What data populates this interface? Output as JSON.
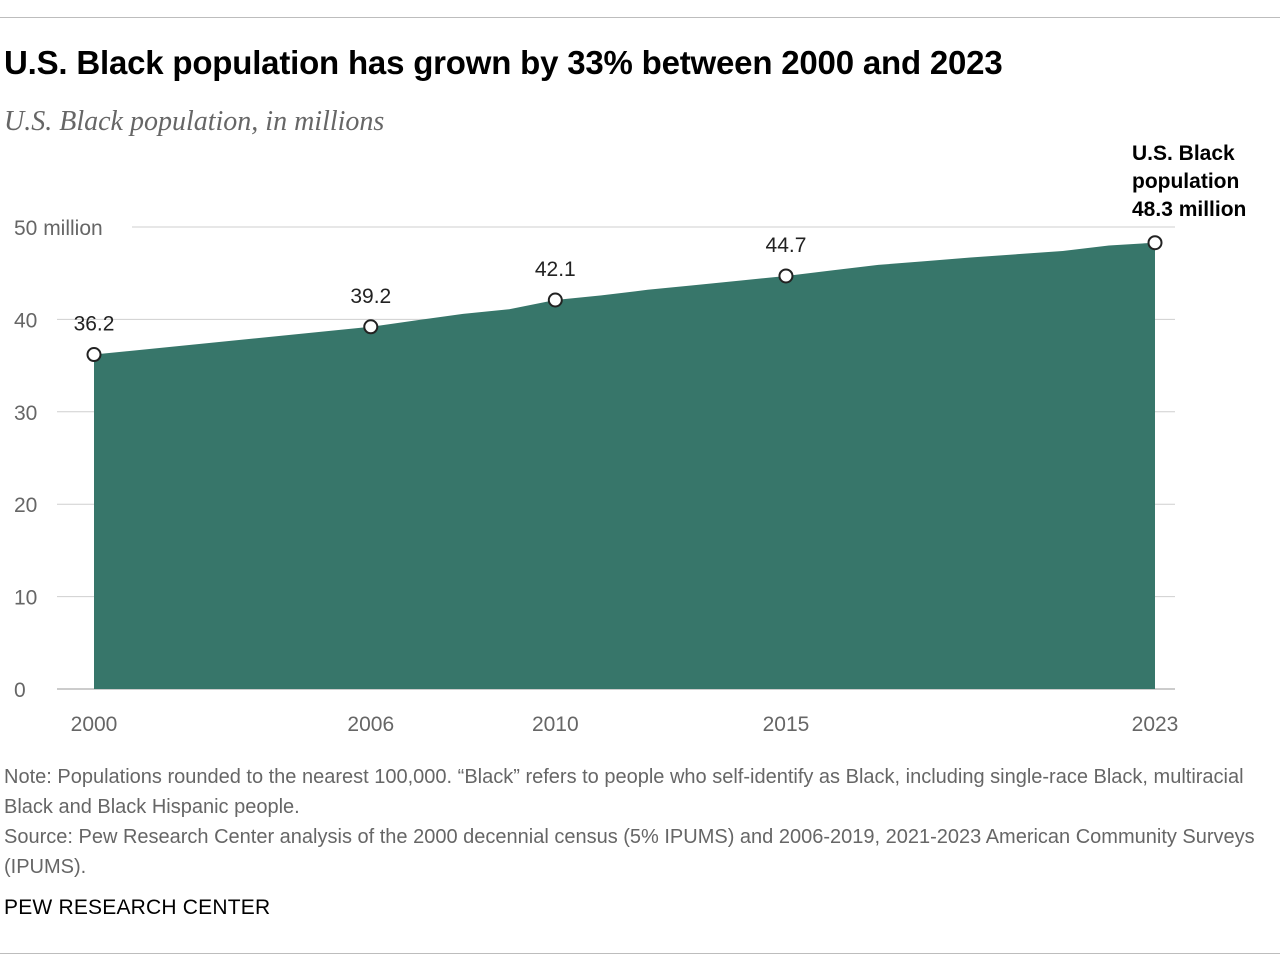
{
  "title": "U.S. Black population has grown by 33% between 2000 and 2023",
  "subtitle": "U.S. Black population, in millions",
  "colors": {
    "area": "#37766A",
    "grid": "#cfcfcf",
    "axis": "#666666"
  },
  "chart_data": {
    "type": "area",
    "x": [
      2000,
      2006,
      2007,
      2008,
      2009,
      2010,
      2011,
      2012,
      2013,
      2014,
      2015,
      2016,
      2017,
      2018,
      2019,
      2021,
      2022,
      2023
    ],
    "values": [
      36.2,
      39.2,
      39.9,
      40.6,
      41.1,
      42.1,
      42.6,
      43.2,
      43.7,
      44.2,
      44.7,
      45.3,
      45.9,
      46.3,
      46.7,
      47.4,
      48.0,
      48.3
    ],
    "xlim": [
      2000,
      2023
    ],
    "ylim": [
      0,
      50
    ],
    "y_ticks": [
      {
        "value": 50,
        "label": "50 million"
      },
      {
        "value": 40,
        "label": "40"
      },
      {
        "value": 30,
        "label": "30"
      },
      {
        "value": 20,
        "label": "20"
      },
      {
        "value": 10,
        "label": "10"
      },
      {
        "value": 0,
        "label": "0"
      }
    ],
    "x_ticks": [
      {
        "value": 2000,
        "label": "2000"
      },
      {
        "value": 2006,
        "label": "2006"
      },
      {
        "value": 2010,
        "label": "2010"
      },
      {
        "value": 2015,
        "label": "2015"
      },
      {
        "value": 2023,
        "label": "2023"
      }
    ],
    "markers": [
      {
        "x": 2000,
        "y": 36.2,
        "label": "36.2"
      },
      {
        "x": 2006,
        "y": 39.2,
        "label": "39.2"
      },
      {
        "x": 2010,
        "y": 42.1,
        "label": "42.1"
      },
      {
        "x": 2015,
        "y": 44.7,
        "label": "44.7"
      },
      {
        "x": 2023,
        "y": 48.3,
        "label": ""
      }
    ],
    "annotation": {
      "lines": [
        "U.S. Black",
        "population",
        "48.3 million"
      ]
    },
    "grid": true
  },
  "note": "Note: Populations rounded to the nearest 100,000. “Black” refers to people who self-identify as Black, including single-race Black, multiracial Black and Black Hispanic people.",
  "source": "Source: Pew Research Center analysis of the 2000 decennial census (5% IPUMS) and 2006-2019, 2021-2023 American Community Surveys (IPUMS).",
  "brand": "PEW RESEARCH CENTER"
}
